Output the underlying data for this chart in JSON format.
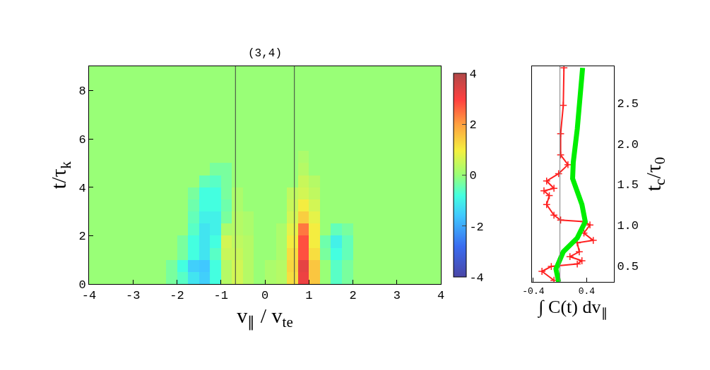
{
  "chart_data": [
    {
      "type": "heatmap",
      "title": "(3,4)",
      "xlabel": "v$_{∥}$ / v$_{te}$",
      "ylabel": "t/τ$_{k}$",
      "x": [
        -3.875,
        -3.625,
        -3.375,
        -3.125,
        -2.875,
        -2.625,
        -2.375,
        -2.125,
        -1.875,
        -1.625,
        -1.375,
        -1.125,
        -0.875,
        -0.625,
        -0.375,
        -0.125,
        0.125,
        0.375,
        0.625,
        0.875,
        1.125,
        1.375,
        1.625,
        1.875,
        2.125,
        2.375,
        2.625,
        2.875,
        3.125,
        3.375,
        3.625,
        3.875
      ],
      "y": [
        8.75,
        8.25,
        7.75,
        7.25,
        6.75,
        6.25,
        5.75,
        5.25,
        4.75,
        4.25,
        3.75,
        3.25,
        2.75,
        2.25,
        1.75,
        1.25,
        0.75,
        0.25
      ],
      "cells": [
        [
          0,
          0,
          0,
          0,
          0,
          0,
          0,
          0,
          0,
          0,
          0,
          0,
          0,
          0,
          0,
          0,
          0,
          0,
          0,
          0,
          0,
          0,
          0,
          0,
          0,
          0,
          0,
          0,
          0,
          0,
          0,
          0
        ],
        [
          0,
          0,
          0,
          0,
          0,
          0,
          0,
          0,
          0,
          0,
          0,
          0,
          0,
          0,
          0,
          0,
          0,
          0,
          0,
          0,
          0,
          0,
          0,
          0,
          0,
          0,
          0,
          0,
          0,
          0,
          0,
          0
        ],
        [
          0,
          0,
          0,
          0,
          0,
          0,
          0,
          0,
          0,
          0,
          0,
          0,
          0,
          0,
          0,
          0,
          0,
          0,
          0,
          0,
          0,
          0,
          0,
          0,
          0,
          0,
          0,
          0,
          0,
          0,
          0,
          0
        ],
        [
          0,
          0,
          0,
          0,
          0,
          0,
          0,
          0,
          0,
          0,
          0,
          0,
          0,
          0,
          0,
          0,
          0,
          0,
          0,
          0,
          0,
          0,
          0,
          0,
          0,
          0,
          0,
          0,
          0,
          0,
          0,
          0
        ],
        [
          0,
          0,
          0,
          0,
          0,
          0,
          0,
          0,
          0,
          0,
          0,
          0,
          0,
          0,
          0,
          0,
          0,
          0,
          0,
          0,
          0,
          0,
          0,
          0,
          0,
          0,
          0,
          0,
          0,
          0,
          0,
          0
        ],
        [
          0,
          0,
          0,
          0,
          0,
          0,
          0,
          0,
          0,
          0,
          0,
          0,
          0,
          0,
          0,
          0,
          0,
          0,
          0,
          0,
          0,
          0,
          0,
          0,
          0,
          0,
          0,
          0,
          0,
          0,
          0,
          0
        ],
        [
          0,
          0,
          0,
          0,
          0,
          0,
          0,
          0,
          0,
          0,
          0,
          0,
          0,
          0,
          0,
          0,
          0,
          0,
          0,
          0,
          0,
          0,
          0,
          0,
          0,
          0,
          0,
          0,
          0,
          0,
          0,
          0
        ],
        [
          0,
          0,
          0,
          0,
          0,
          0,
          0,
          0,
          0,
          0,
          0,
          0,
          0,
          0,
          0,
          0,
          0,
          0,
          0,
          0.2,
          0,
          0,
          0,
          0,
          0,
          0,
          0,
          0,
          0,
          0,
          0,
          0
        ],
        [
          0,
          0,
          0,
          0,
          0,
          0,
          0,
          0,
          0,
          0,
          0,
          -0.3,
          -0.3,
          0,
          0,
          0,
          0,
          0,
          0,
          0.3,
          0,
          0,
          0,
          0,
          0,
          0,
          0,
          0,
          0,
          0,
          0,
          0
        ],
        [
          0,
          0,
          0,
          0,
          0,
          0,
          0,
          0,
          0,
          0,
          -0.5,
          -0.6,
          -0.3,
          0,
          0,
          0,
          0,
          0,
          0,
          0.5,
          0.3,
          0,
          0,
          0,
          0,
          0,
          0,
          0,
          0,
          0,
          0,
          0
        ],
        [
          0,
          0,
          0,
          0,
          0,
          0,
          0,
          0,
          0,
          -0.3,
          -0.8,
          -0.8,
          -0.3,
          0.2,
          0,
          0,
          0,
          0,
          0.4,
          0.6,
          0.4,
          0,
          0,
          0,
          0,
          0,
          0,
          0,
          0,
          0,
          0,
          0
        ],
        [
          0,
          0,
          0,
          0,
          0,
          0,
          0,
          0,
          0,
          -0.4,
          -0.8,
          -0.8,
          -0.4,
          0.2,
          0,
          0,
          0,
          0,
          0.5,
          1.0,
          0.6,
          0,
          0,
          0,
          0,
          0,
          0,
          0,
          0,
          0,
          0,
          0
        ],
        [
          0,
          0,
          0,
          0,
          0,
          0,
          0,
          0,
          0,
          -0.5,
          -1.0,
          -1.0,
          -0.3,
          0.3,
          0.2,
          0,
          0,
          0,
          0.6,
          1.4,
          0.8,
          0,
          0,
          0,
          0,
          0,
          0,
          0,
          0,
          0,
          0,
          0
        ],
        [
          0,
          0,
          0,
          0,
          0,
          0,
          0,
          0,
          0,
          -0.6,
          -1.2,
          -1.0,
          0.2,
          0.3,
          0.2,
          0,
          0,
          0.2,
          0.8,
          2.4,
          1.0,
          0,
          -0.5,
          -0.3,
          0,
          0,
          0,
          0,
          0,
          0,
          0,
          0
        ],
        [
          0,
          0,
          0,
          0,
          0,
          0,
          0,
          0,
          -0.3,
          -0.8,
          -1.2,
          -0.8,
          0.6,
          0.4,
          0.3,
          0,
          0,
          0.2,
          1.0,
          2.8,
          1.0,
          -0.4,
          -1.0,
          -0.5,
          0,
          0,
          0,
          0,
          0,
          0,
          0,
          0
        ],
        [
          0,
          0,
          0,
          0,
          0,
          0,
          0,
          0,
          -0.3,
          -0.8,
          -1.2,
          -0.6,
          0.5,
          0.5,
          0.3,
          0,
          0,
          0.2,
          1.2,
          2.8,
          1.2,
          -0.3,
          -0.8,
          -0.5,
          0,
          0,
          0,
          0,
          0,
          0,
          0,
          0
        ],
        [
          0,
          0,
          0,
          0,
          0,
          0,
          0,
          -0.3,
          -0.8,
          -1.5,
          -1.6,
          -0.8,
          0.3,
          0.6,
          0.3,
          0,
          0.2,
          0.3,
          1.3,
          3.3,
          1.5,
          0,
          -0.6,
          -0.3,
          0,
          0,
          0,
          0,
          0,
          0,
          0,
          0
        ],
        [
          0,
          0,
          0,
          0,
          0,
          0,
          0,
          -0.3,
          -0.6,
          -1.2,
          -1.5,
          -0.8,
          0.3,
          0.6,
          0.3,
          0,
          0.2,
          0.3,
          1.2,
          3.2,
          1.5,
          0,
          -0.6,
          -0.3,
          0,
          0,
          0,
          0,
          0,
          0,
          0,
          0
        ]
      ],
      "clim": [
        -4,
        4
      ],
      "cticks": [
        -4,
        -2,
        0,
        2,
        4
      ],
      "xlim": [
        -4,
        4
      ],
      "xticks": [
        -4,
        -3,
        -2,
        -1,
        0,
        1,
        2,
        3,
        4
      ],
      "ylim": [
        0,
        9
      ],
      "yticks": [
        0,
        2,
        4,
        6,
        8
      ],
      "ref_lines": [
        {
          "axis": "x",
          "value": -0.67,
          "color": "#404040"
        },
        {
          "axis": "x",
          "value": 0.67,
          "color": "#404040"
        }
      ]
    },
    {
      "type": "line",
      "xlabel": "∫ C(t) dv$_{∥}$",
      "y2label": "t$_{c}$/τ$_{0}$",
      "series": [
        {
          "color": "#ff2020",
          "axis": "y2",
          "marker": "cross",
          "x": [
            -0.09,
            -0.27,
            -0.13,
            0.26,
            0.33,
            0.15,
            0.29,
            0.26,
            0.5,
            0.36,
            0.45,
            0.36,
            0.01,
            -0.09,
            -0.2,
            -0.16,
            -0.24,
            -0.09,
            -0.2,
            -0.02,
            0.12,
            0.01,
            0.01,
            0.05,
            0.06
          ],
          "values": [
            0.32,
            0.43,
            0.49,
            0.52,
            0.56,
            0.61,
            0.67,
            0.78,
            0.81,
            0.9,
            1.0,
            1.04,
            1.06,
            1.12,
            1.25,
            1.36,
            1.42,
            1.45,
            1.54,
            1.63,
            1.74,
            1.86,
            2.12,
            2.47,
            2.93
          ]
        },
        {
          "color": "#00ee00",
          "axis": "y2",
          "marker": "none",
          "x": [
            -0.02,
            -0.06,
            0.05,
            0.26,
            0.38,
            0.33,
            0.19,
            0.2,
            0.26,
            0.34
          ],
          "values": [
            0.3,
            0.46,
            0.67,
            0.84,
            1.04,
            1.25,
            1.57,
            1.77,
            2.18,
            2.93
          ]
        }
      ],
      "xlim": [
        -0.42,
        0.81
      ],
      "xticks": [
        -0.4,
        0.4
      ],
      "y2lim": [
        0.3,
        2.95
      ],
      "y2ticks": [
        {
          "value": 0.5,
          "label": "0.5"
        },
        {
          "value": 1,
          "label": "1.0"
        },
        {
          "value": 1.5,
          "label": "1.5"
        },
        {
          "value": 2,
          "label": "2.0"
        },
        {
          "value": 2.5,
          "label": "2.5"
        }
      ],
      "ref_lines": [
        {
          "axis": "x",
          "value": 0,
          "color": "#808080"
        }
      ]
    }
  ]
}
